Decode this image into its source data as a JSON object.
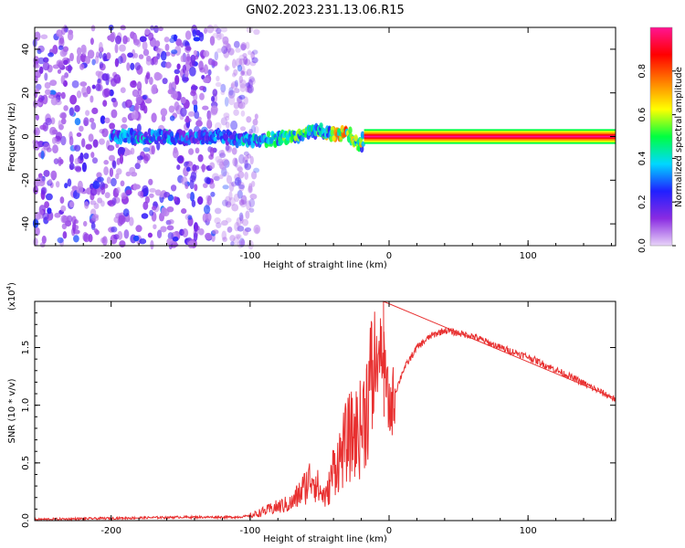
{
  "title": "GN02.2023.231.13.06.R15",
  "chart_data": [
    {
      "type": "heatmap",
      "xlabel": "Height of straight line (km)",
      "ylabel": "Frequency (Hz)",
      "xlim": [
        -255,
        163
      ],
      "ylim": [
        -50,
        50
      ],
      "xticks": [
        -200,
        -100,
        0,
        100
      ],
      "xtick_labels": [
        "-200",
        "-100",
        "0",
        "100"
      ],
      "yticks": [
        -40,
        -20,
        0,
        20,
        40
      ],
      "ytick_labels": [
        "-40",
        "-20",
        "0",
        "20",
        "40"
      ],
      "colorbar": {
        "label": "Normalized spectral amplitude",
        "range": [
          0,
          1
        ],
        "ticks": [
          0.0,
          0.2,
          0.4,
          0.6,
          0.8
        ],
        "tick_labels": [
          "0.0",
          "0.2",
          "0.4",
          "0.6",
          "0.8"
        ],
        "colors": [
          "#e8d4f8",
          "#8a2be2",
          "#2020ff",
          "#00d8ff",
          "#00ff40",
          "#ffff00",
          "#ff8000",
          "#ff0000",
          "#ff1493"
        ]
      },
      "ridge": {
        "x": [
          -200,
          -180,
          -160,
          -140,
          -120,
          -100,
          -80,
          -70,
          -60,
          -50,
          -40,
          -30,
          -25,
          -20,
          -18,
          0,
          50,
          100,
          163
        ],
        "freq": [
          0,
          0,
          0,
          -1,
          0,
          -2,
          -1,
          0,
          1,
          3,
          1,
          2,
          -2,
          -4,
          0,
          0,
          0,
          0,
          0
        ],
        "amplitude": [
          0.35,
          0.4,
          0.4,
          0.35,
          0.35,
          0.45,
          0.5,
          0.55,
          0.55,
          0.6,
          0.75,
          0.8,
          0.6,
          0.65,
          0.85,
          0.85,
          0.85,
          0.85,
          0.85
        ]
      },
      "noise_region_x": [
        -255,
        -110
      ]
    },
    {
      "type": "line",
      "xlabel": "Height of straight line (km)",
      "ylabel": "SNR (10 * v/v)",
      "y_multiplier": "(x10",
      "y_multiplier_exp": "4",
      "y_multiplier_close": ")",
      "xlim": [
        -255,
        163
      ],
      "ylim": [
        0,
        1.9
      ],
      "xticks": [
        -200,
        -100,
        0,
        100
      ],
      "xtick_labels": [
        "-200",
        "-100",
        "0",
        "100"
      ],
      "yticks": [
        0,
        0.5,
        1.0,
        1.5
      ],
      "ytick_labels": [
        "0.0",
        "0.5",
        "1.0",
        "1.5"
      ],
      "series": [
        {
          "name": "SNR",
          "color": "#e83030",
          "x": [
            -255,
            -200,
            -150,
            -110,
            -100,
            -90,
            -80,
            -70,
            -60,
            -55,
            -50,
            -45,
            -40,
            -35,
            -30,
            -25,
            -20,
            -15,
            -10,
            -5,
            0,
            10,
            20,
            30,
            40,
            60,
            80,
            100,
            130,
            163
          ],
          "y": [
            0.01,
            0.02,
            0.03,
            0.03,
            0.04,
            0.08,
            0.12,
            0.15,
            0.3,
            0.4,
            0.25,
            0.2,
            0.45,
            0.55,
            0.7,
            0.75,
            0.8,
            1.1,
            1.3,
            1.5,
            0.95,
            1.3,
            1.5,
            1.6,
            1.65,
            1.6,
            1.5,
            1.42,
            1.25,
            1.05
          ]
        }
      ]
    }
  ]
}
